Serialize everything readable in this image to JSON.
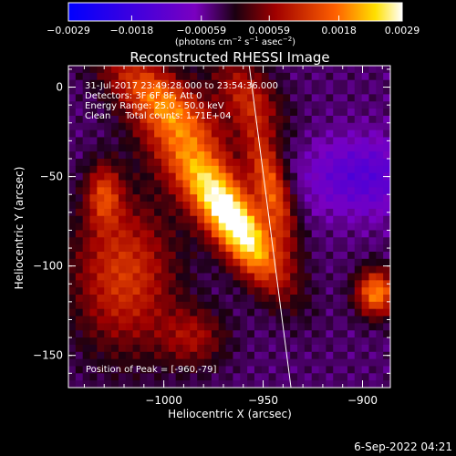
{
  "chart_data": {
    "type": "heatmap",
    "title": "Reconstructed RHESSI Image",
    "xlabel": "Heliocentric X (arcsec)",
    "ylabel": "Heliocentric Y (arcsec)",
    "xlim": [
      -1048,
      -886
    ],
    "ylim": [
      -168,
      12
    ],
    "x_ticks": [
      {
        "value": -1000,
        "label": "−1000"
      },
      {
        "value": -950,
        "label": "−950"
      },
      {
        "value": -900,
        "label": "−900"
      }
    ],
    "y_ticks": [
      {
        "value": 0,
        "label": "0"
      },
      {
        "value": -50,
        "label": "−50"
      },
      {
        "value": -100,
        "label": "−100"
      },
      {
        "value": -150,
        "label": "−150"
      }
    ],
    "colorbar": {
      "min": -0.0029,
      "max": 0.0029,
      "ticks": [
        {
          "value": -0.0029,
          "label": "−0.0029"
        },
        {
          "value": -0.0018,
          "label": "−0.0018"
        },
        {
          "value": -0.00059,
          "label": "−0.00059"
        },
        {
          "value": 0.00059,
          "label": "0.00059"
        },
        {
          "value": 0.0018,
          "label": "0.0018"
        },
        {
          "value": 0.0029,
          "label": "0.0029"
        }
      ],
      "unit_prefix": "(photons cm",
      "unit_exp1": "−2",
      "unit_mid": " s",
      "unit_exp2": "−1",
      "unit_mid2": " asec",
      "unit_exp3": "−2",
      "unit_suffix": ")"
    },
    "annotations": [
      "31-Jul-2017 23:49:28.000 to 23:54:36.000",
      "Detectors: 3F 6F 8F, Att 0",
      "Energy Range: 25.0 - 50.0 keV",
      "Clean     Total counts: 1.71E+04"
    ],
    "peak_label": "Position of Peak = [-960,-79]",
    "limb_line": [
      [
        -957,
        12
      ],
      [
        -936,
        -168
      ]
    ],
    "sources": [
      {
        "x": -962,
        "y": -80,
        "sx": 9,
        "sy": 26,
        "rot": 32,
        "amp": 1.0
      },
      {
        "x": -985,
        "y": -42,
        "sx": 12,
        "sy": 32,
        "rot": 35,
        "amp": 0.6
      },
      {
        "x": -1002,
        "y": -5,
        "sx": 10,
        "sy": 24,
        "rot": 50,
        "amp": 0.55
      },
      {
        "x": -1020,
        "y": -105,
        "sx": 18,
        "sy": 30,
        "rot": 0,
        "amp": 0.55
      },
      {
        "x": -958,
        "y": -5,
        "sx": 10,
        "sy": 18,
        "rot": 30,
        "amp": 0.45
      },
      {
        "x": -946,
        "y": -55,
        "sx": 6,
        "sy": 22,
        "rot": 15,
        "amp": 0.65
      },
      {
        "x": -1030,
        "y": -60,
        "sx": 6,
        "sy": 12,
        "rot": 0,
        "amp": 0.5
      },
      {
        "x": -985,
        "y": -140,
        "sx": 12,
        "sy": 12,
        "rot": 0,
        "amp": 0.35
      },
      {
        "x": -893,
        "y": -115,
        "sx": 7,
        "sy": 9,
        "rot": 0,
        "amp": 0.8
      },
      {
        "x": -900,
        "y": -50,
        "sx": 20,
        "sy": 15,
        "rot": 0,
        "amp": -0.35
      }
    ]
  },
  "footer": {
    "date": "6-Sep-2022 04:21"
  }
}
